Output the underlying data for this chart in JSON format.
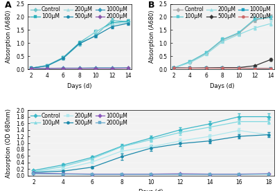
{
  "A": {
    "days": [
      2,
      4,
      6,
      8,
      10,
      12,
      14
    ],
    "series": {
      "Control": [
        0.05,
        0.13,
        0.42,
        0.97,
        1.3,
        1.87,
        1.82
      ],
      "100μM": [
        0.05,
        0.15,
        0.46,
        1.02,
        1.43,
        1.78,
        1.84
      ],
      "200μM": [
        0.05,
        0.16,
        0.45,
        0.98,
        1.45,
        1.72,
        1.8
      ],
      "500μM": [
        0.05,
        0.14,
        0.44,
        0.99,
        1.28,
        1.63,
        1.76
      ],
      "1000μM": [
        0.04,
        0.04,
        0.05,
        0.05,
        0.06,
        0.06,
        0.06
      ],
      "2000μM": [
        0.04,
        0.04,
        0.04,
        0.04,
        0.04,
        0.04,
        0.05
      ]
    },
    "errors": {
      "Control": [
        0.04,
        0.04,
        0.05,
        0.07,
        0.07,
        0.08,
        0.08
      ],
      "100μM": [
        0.04,
        0.04,
        0.05,
        0.07,
        0.07,
        0.08,
        0.08
      ],
      "200μM": [
        0.04,
        0.04,
        0.05,
        0.06,
        0.07,
        0.07,
        0.07
      ],
      "500μM": [
        0.04,
        0.04,
        0.05,
        0.06,
        0.06,
        0.07,
        0.07
      ],
      "1000μM": [
        0.01,
        0.01,
        0.01,
        0.01,
        0.01,
        0.01,
        0.01
      ],
      "2000μM": [
        0.01,
        0.01,
        0.01,
        0.01,
        0.01,
        0.01,
        0.01
      ]
    },
    "colors": {
      "Control": "#6ec6cc",
      "100μM": "#2ab0bb",
      "200μM": "#a0dde2",
      "500μM": "#1a88aa",
      "1000μM": "#3399bb",
      "2000μM": "#8855aa"
    },
    "markers": {
      "Control": "D",
      "100μM": "s",
      "200μM": "^",
      "500μM": "o",
      "1000μM": "D",
      "2000μM": "D"
    },
    "ylabel": "Absorption (A680)",
    "xlabel": "Days (d)",
    "ylim": [
      0,
      2.5
    ],
    "yticks": [
      0,
      0.5,
      1.0,
      1.5,
      2.0,
      2.5
    ],
    "label": "A"
  },
  "B": {
    "days": [
      2,
      4,
      6,
      8,
      10,
      12,
      14
    ],
    "series": {
      "Control": [
        0.06,
        0.28,
        0.62,
        1.12,
        1.37,
        1.88,
        2.0
      ],
      "100μM": [
        0.06,
        0.3,
        0.64,
        1.14,
        1.4,
        1.92,
        1.98
      ],
      "200μM": [
        0.06,
        0.26,
        0.58,
        1.06,
        1.33,
        1.58,
        1.75
      ],
      "500μM": [
        0.06,
        0.05,
        0.06,
        0.07,
        0.07,
        0.14,
        0.38
      ],
      "1000μM": [
        0.06,
        0.05,
        0.05,
        0.05,
        0.05,
        0.04,
        0.04
      ],
      "2000μM": [
        0.06,
        0.05,
        0.05,
        0.05,
        0.05,
        0.04,
        0.04
      ]
    },
    "errors": {
      "Control": [
        0.03,
        0.04,
        0.05,
        0.07,
        0.07,
        0.08,
        0.08
      ],
      "100μM": [
        0.03,
        0.04,
        0.05,
        0.07,
        0.07,
        0.08,
        0.08
      ],
      "200μM": [
        0.03,
        0.04,
        0.05,
        0.06,
        0.06,
        0.07,
        0.07
      ],
      "500μM": [
        0.02,
        0.02,
        0.02,
        0.02,
        0.02,
        0.03,
        0.05
      ],
      "1000μM": [
        0.01,
        0.01,
        0.01,
        0.01,
        0.01,
        0.01,
        0.01
      ],
      "2000μM": [
        0.01,
        0.01,
        0.01,
        0.01,
        0.01,
        0.01,
        0.01
      ]
    },
    "colors": {
      "Control": "#aaaaaa",
      "100μM": "#5bc8d2",
      "200μM": "#90dde3",
      "500μM": "#333333",
      "1000μM": "#1a9fc0",
      "2000μM": "#cc6666"
    },
    "markers": {
      "Control": "D",
      "100μM": "s",
      "200μM": "^",
      "500μM": "D",
      "1000μM": "s",
      "2000μM": "o"
    },
    "ylabel": "Absorption (A680)",
    "xlabel": "Days (d)",
    "ylim": [
      0,
      2.5
    ],
    "yticks": [
      0,
      0.5,
      1.0,
      1.5,
      2.0,
      2.5
    ],
    "label": "B"
  },
  "C": {
    "days": [
      2,
      4,
      6,
      8,
      10,
      12,
      14,
      16,
      18
    ],
    "series": {
      "Control": [
        0.16,
        0.33,
        0.56,
        0.9,
        1.15,
        1.4,
        1.58,
        1.8,
        1.8
      ],
      "100μM": [
        0.12,
        0.28,
        0.52,
        0.88,
        1.1,
        1.32,
        1.48,
        1.65,
        1.65
      ],
      "200μM": [
        0.1,
        0.2,
        0.42,
        0.75,
        0.88,
        1.06,
        1.2,
        1.38,
        1.25
      ],
      "500μM": [
        0.1,
        0.14,
        0.26,
        0.58,
        0.84,
        0.98,
        1.06,
        1.2,
        1.25
      ],
      "1000μM": [
        0.08,
        0.06,
        0.05,
        0.05,
        0.05,
        0.06,
        0.05,
        0.05,
        0.06
      ],
      "2000μM": [
        0.06,
        0.05,
        0.04,
        0.04,
        0.04,
        0.04,
        0.04,
        0.04,
        0.05
      ]
    },
    "errors": {
      "Control": [
        0.03,
        0.04,
        0.05,
        0.07,
        0.08,
        0.08,
        0.08,
        0.09,
        0.09
      ],
      "100μM": [
        0.03,
        0.04,
        0.05,
        0.06,
        0.07,
        0.08,
        0.08,
        0.08,
        0.08
      ],
      "200μM": [
        0.03,
        0.03,
        0.04,
        0.06,
        0.07,
        0.07,
        0.07,
        0.08,
        0.08
      ],
      "500μM": [
        0.02,
        0.03,
        0.04,
        0.1,
        0.08,
        0.07,
        0.06,
        0.07,
        0.07
      ],
      "1000μM": [
        0.01,
        0.01,
        0.01,
        0.01,
        0.01,
        0.01,
        0.01,
        0.01,
        0.01
      ],
      "2000μM": [
        0.01,
        0.01,
        0.01,
        0.01,
        0.01,
        0.01,
        0.01,
        0.01,
        0.01
      ]
    },
    "colors": {
      "Control": "#3ab8c8",
      "100μM": "#80d8e0",
      "200μM": "#b0e8ee",
      "500μM": "#1a88aa",
      "1000μM": "#8855bb",
      "2000μM": "#66aacc"
    },
    "markers": {
      "Control": "D",
      "100μM": "^",
      "200μM": "s",
      "500μM": "o",
      "1000μM": "D",
      "2000μM": "s"
    },
    "ylabel": "Absorption (OD 680nm)",
    "xlabel": "Days (d)",
    "ylim": [
      0,
      2.0
    ],
    "yticks": [
      0,
      0.2,
      0.4,
      0.6,
      0.8,
      1.0,
      1.2,
      1.4,
      1.6,
      1.8,
      2.0
    ],
    "label": "C"
  },
  "legend_order": [
    "Control",
    "100μM",
    "200μM",
    "500μM",
    "1000μM",
    "2000μM"
  ],
  "linewidth": 0.9,
  "markersize": 3.0,
  "fontsize": 6,
  "tick_fontsize": 5.5,
  "bg_color": "#f0f0f0"
}
